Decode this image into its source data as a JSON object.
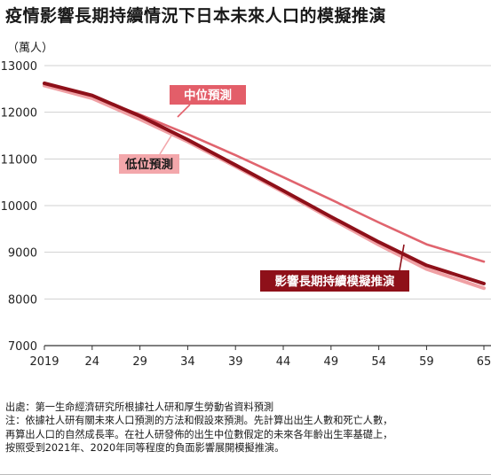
{
  "title": "疫情影響長期持續情況下日本未來人口的模擬推演",
  "unit_label": "（萬人）",
  "notes": {
    "source": "出處：第一生命經濟研究所根據社人研和厚生勞動省資料預測",
    "note": "注：依據社人研有關未來人口預測的方法和假設來預測。先計算出出生人數和死亡人數，再算出人口的自然成長率。在社人研發佈的出生中位數假定的未來各年齡出生率基礎上，按照受到2021年、2020年同等程度的負面影響展開模擬推演。"
  },
  "colors": {
    "medium": "#e0646e",
    "low": "#f0a0a4",
    "sim": "#8e1019",
    "label_bg_medium": "#e35e69",
    "label_bg_low": "#f3a7ab",
    "label_bg_sim": "#8e1019",
    "grid": "#d0d0d0"
  },
  "chart_data": {
    "type": "line",
    "title": "疫情影響長期持續情況下日本未來人口的模擬推演",
    "xlabel": "",
    "ylabel": "（萬人）",
    "xlim": [
      2019,
      2065
    ],
    "ylim": [
      7000,
      13000
    ],
    "x_ticks": [
      2019,
      2024,
      2029,
      2034,
      2039,
      2044,
      2049,
      2054,
      2059,
      2065
    ],
    "x_tick_labels": [
      "2019",
      "24",
      "29",
      "34",
      "39",
      "44",
      "49",
      "54",
      "59",
      "65"
    ],
    "y_ticks": [
      7000,
      8000,
      9000,
      10000,
      11000,
      12000,
      13000
    ],
    "grid": "horizontal",
    "series": [
      {
        "name": "中位預測",
        "color_key": "medium",
        "x": [
          2019,
          2024,
          2029,
          2034,
          2039,
          2044,
          2049,
          2054,
          2059,
          2065
        ],
        "y": [
          12620,
          12330,
          11950,
          11530,
          11080,
          10610,
          10130,
          9640,
          9170,
          8800
        ]
      },
      {
        "name": "低位預測",
        "color_key": "low",
        "x": [
          2019,
          2024,
          2029,
          2034,
          2039,
          2044,
          2049,
          2054,
          2059,
          2065
        ],
        "y": [
          12570,
          12300,
          11850,
          11370,
          10840,
          10290,
          9720,
          9160,
          8640,
          8230
        ]
      },
      {
        "name": "影響長期持續模擬推演",
        "color_key": "sim",
        "x": [
          2019,
          2024,
          2029,
          2034,
          2039,
          2044,
          2049,
          2054,
          2059,
          2065
        ],
        "y": [
          12620,
          12360,
          11920,
          11410,
          10870,
          10320,
          9760,
          9220,
          8720,
          8330
        ]
      }
    ]
  }
}
